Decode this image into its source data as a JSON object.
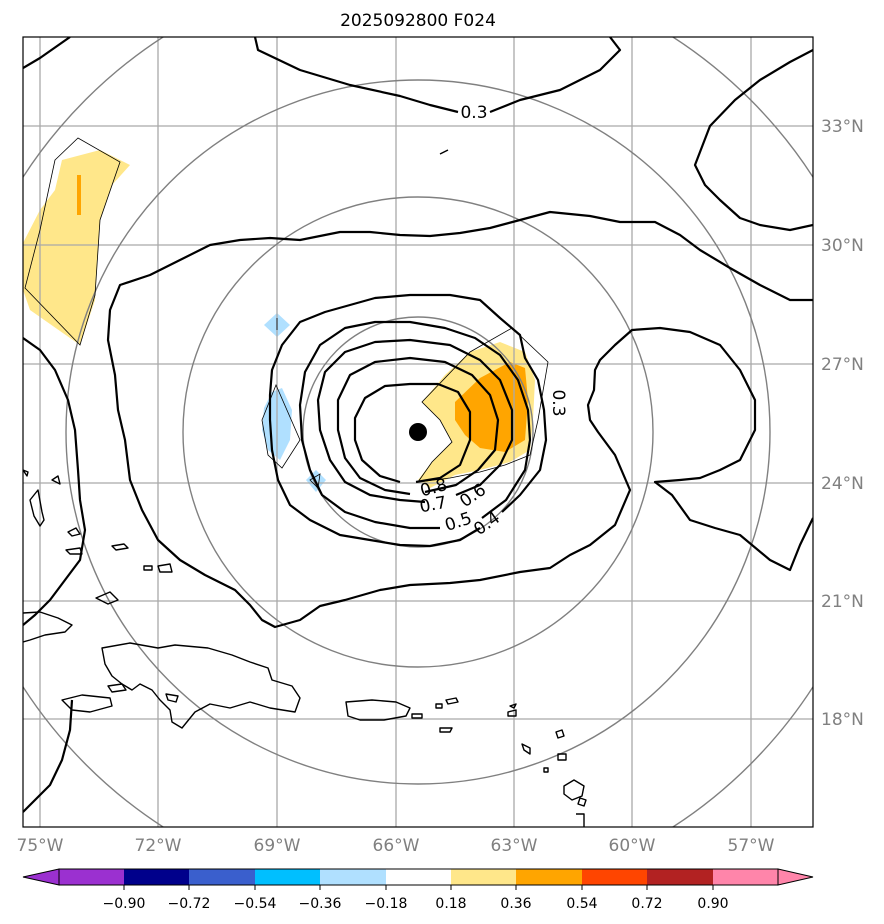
{
  "title": "2025092800 F024",
  "map": {
    "lon_labels": [
      "75°W",
      "72°W",
      "69°W",
      "66°W",
      "63°W",
      "60°W",
      "57°W"
    ],
    "lat_labels": [
      "33°N",
      "30°N",
      "27°N",
      "24°N",
      "21°N",
      "18°N"
    ],
    "storm_center": {
      "lon": "65.4°W",
      "lat": "25.3°N"
    },
    "contour_labels": [
      "0.3",
      "0.3",
      "0.8",
      "0.7",
      "0.6",
      "0.5",
      "0.4"
    ]
  },
  "colorbar": {
    "tick_labels": [
      "−0.90",
      "−0.72",
      "−0.54",
      "−0.36",
      "−0.18",
      "0.18",
      "0.36",
      "0.54",
      "0.72",
      "0.90"
    ],
    "colors": [
      "#9b30d0",
      "#00008b",
      "#3a5fcd",
      "#00bfff",
      "#b0e0ff",
      "#ffffff",
      "#ffe78a",
      "#ffa500",
      "#ff4500",
      "#b22222",
      "#ff85aa"
    ]
  },
  "colors": {
    "coast": "#000000",
    "grid": "#a9a9a9",
    "range_ring": "#808080",
    "contour": "#000000"
  }
}
